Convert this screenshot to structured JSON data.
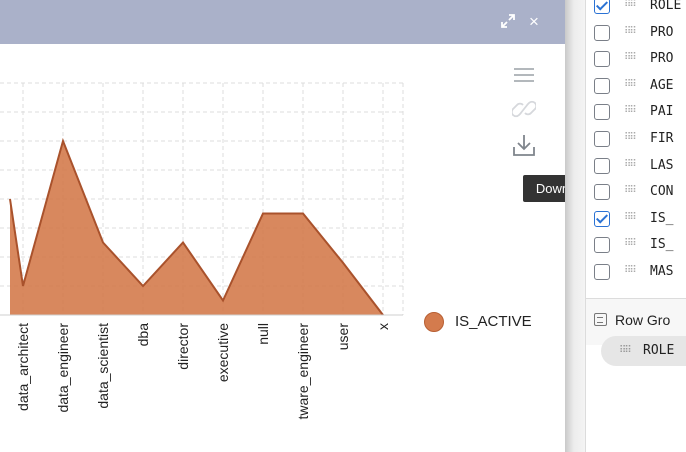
{
  "window": {
    "expand_icon": "expand-arrows-icon",
    "close_glyph": "×"
  },
  "chart_data": {
    "type": "area",
    "categories": [
      "data_architect",
      "data_engineer",
      "data_scientist",
      "dba",
      "director",
      "executive",
      "null",
      "software_engineer",
      "user",
      "x"
    ],
    "tick_labels": [
      "data_architect",
      "data_engineer",
      "data_scientist",
      "dba",
      "director",
      "executive",
      "null",
      "tware_engineer",
      "user",
      "x"
    ],
    "series": [
      {
        "name": "IS_ACTIVE",
        "values": [
          1,
          6,
          2.5,
          1,
          2.5,
          0.5,
          3.5,
          3.5,
          1.8,
          0
        ],
        "color": "#d47b4d",
        "line_color": "#a9522c"
      }
    ],
    "partial_left_value": 4,
    "ylim": [
      0,
      8
    ],
    "grid": true,
    "legend_position": "right"
  },
  "toolbar": {
    "menu_icon": "hamburger-menu-icon",
    "link_icon": "link-icon",
    "download_icon": "download-icon"
  },
  "tooltip": {
    "text": "Download Chart"
  },
  "legend": {
    "label": "IS_ACTIVE"
  },
  "columns": [
    {
      "label": "ROLE",
      "checked": true
    },
    {
      "label": "PRO",
      "checked": false
    },
    {
      "label": "PRO",
      "checked": false
    },
    {
      "label": "AGE",
      "checked": false
    },
    {
      "label": "PAI",
      "checked": false
    },
    {
      "label": "FIR",
      "checked": false
    },
    {
      "label": "LAS",
      "checked": false
    },
    {
      "label": "CON",
      "checked": false
    },
    {
      "label": "IS_",
      "checked": true
    },
    {
      "label": "IS_",
      "checked": false
    },
    {
      "label": "MAS",
      "checked": false
    }
  ],
  "row_groups": {
    "label": "Row Gro",
    "pill_label": "ROLE"
  }
}
